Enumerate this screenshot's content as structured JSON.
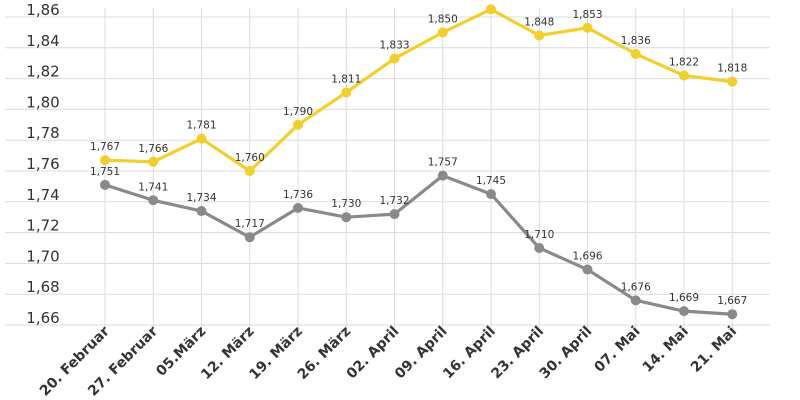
{
  "chart_data": {
    "type": "line",
    "title": "",
    "xlabel": "",
    "ylabel": "",
    "ylim": [
      1.65,
      1.86
    ],
    "yticks": [
      "1,86",
      "1,84",
      "1,82",
      "1,80",
      "1,78",
      "1,76",
      "1,74",
      "1,72",
      "1,70",
      "1,68",
      "1,66"
    ],
    "categories": [
      "20. Februar",
      "27. Februar",
      "05.März",
      "12. März",
      "19. März",
      "26. März",
      "02. April",
      "09. April",
      "16. April",
      "23. April",
      "30. April",
      "07. Mai",
      "14. Mai",
      "21. Mai"
    ],
    "series": [
      {
        "name": "yellow",
        "color": "#f2cf2a",
        "values": [
          1.767,
          1.766,
          1.781,
          1.76,
          1.79,
          1.811,
          1.833,
          1.85,
          1.865,
          1.848,
          1.853,
          1.836,
          1.822,
          1.818
        ],
        "labels": [
          "1,767",
          "1,766",
          "1,781",
          "1,760",
          "1,790",
          "1,811",
          "1,833",
          "1,850",
          "",
          "1,848",
          "1,853",
          "1,836",
          "1,822",
          "1,818"
        ]
      },
      {
        "name": "gray",
        "color": "#8a8a8a",
        "values": [
          1.751,
          1.741,
          1.734,
          1.717,
          1.736,
          1.73,
          1.732,
          1.757,
          1.745,
          1.71,
          1.696,
          1.676,
          1.669,
          1.667
        ],
        "labels": [
          "1,751",
          "1,741",
          "1,734",
          "1,717",
          "1,736",
          "1,730",
          "1,732",
          "1,757",
          "1,745",
          "1,710",
          "1,696",
          "1,676",
          "1,669",
          "1,667"
        ]
      }
    ],
    "grid": true
  }
}
